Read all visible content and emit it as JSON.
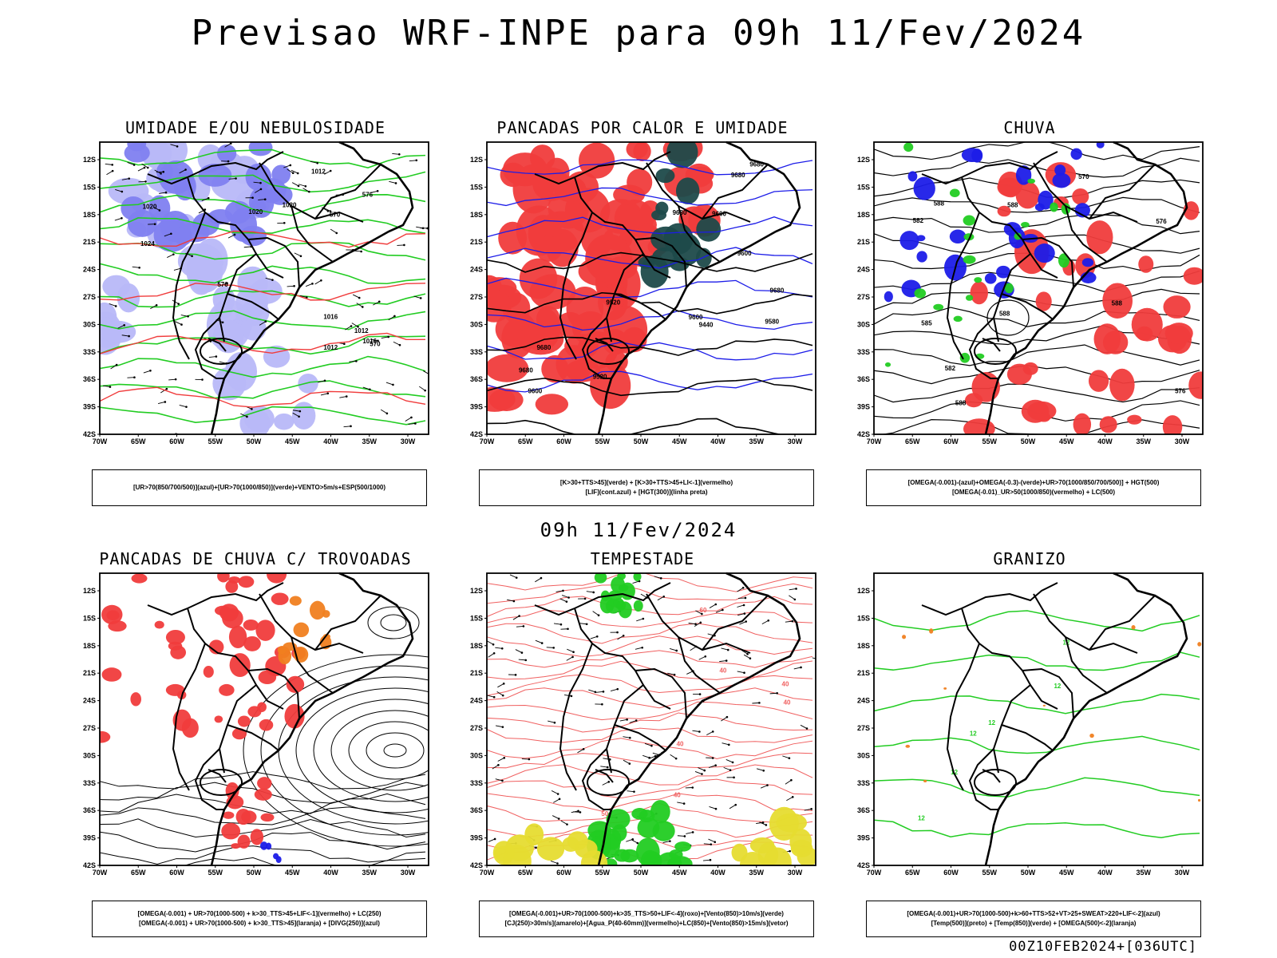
{
  "title": "Previsao WRF-INPE  para 09h 11/Fev/2024",
  "mid_date": "09h 11/Fev/2024",
  "footer": "00Z10FEB2024+[036UTC]",
  "axes": {
    "lat_labels": [
      "12S",
      "15S",
      "18S",
      "21S",
      "24S",
      "27S",
      "30S",
      "33S",
      "36S",
      "39S",
      "42S"
    ],
    "lon_labels": [
      "70W",
      "65W",
      "60W",
      "55W",
      "50W",
      "45W",
      "40W",
      "35W",
      "30W"
    ]
  },
  "colors": {
    "blue_fill": "#8080f0",
    "light_blue_fill": "#b8b8f8",
    "deep_blue": "#1c1ce8",
    "red_fill": "#f03c3c",
    "green_line": "#22cc22",
    "dark_teal": "#1e4a4a",
    "orange": "#f08020",
    "yellow": "#e6dc30",
    "salmon_line": "#f06060",
    "map_line": "#000000"
  },
  "panels": [
    {
      "id": "umidade",
      "title": "UMIDADE E/OU NEBULOSIDADE",
      "legend": [
        "[UR>70(850/700/500)](azul)+[UR>70(1000/850)](verde)+VENTO>5m/s+ESP(500/1000)"
      ],
      "contour_labels": [
        "1016",
        "1020",
        "1020",
        "1012",
        "1020",
        "1016",
        "1012",
        "1012",
        "1024",
        "570",
        "576",
        "570",
        "576"
      ]
    },
    {
      "id": "pancadas_calor",
      "title": "PANCADAS POR CALOR E UMIDADE",
      "legend": [
        "[K>30+TTS>45](verde) + [K>30+TTS>45+LI<-1](vermelho)",
        "[LIF](cont.azul) + [HGT(300)](linha preta)"
      ],
      "contour_labels": [
        "9680",
        "9680",
        "9600",
        "9680",
        "9600",
        "9680",
        "9680",
        "9600",
        "9680",
        "9600",
        "9520",
        "9440",
        "9520",
        "9580"
      ]
    },
    {
      "id": "chuva",
      "title": "CHUVA",
      "legend": [
        "[OMEGA(-0.001)-(azul)+OMEGA(-0.3)-(verde)+UR>70(1000/850/700/500)] + HGT(500)",
        "[OMEGA(-0.01)_UR>50(1000/850)(vermelho) + LC(500)"
      ],
      "contour_labels": [
        "588",
        "588",
        "588",
        "588",
        "588",
        "582",
        "576",
        "582",
        "585",
        "570",
        "576"
      ]
    },
    {
      "id": "trovoadas",
      "title": "PANCADAS DE CHUVA C/ TROVOADAS",
      "legend": [
        "[OMEGA(-0.001) + UR>70(1000-500) + k>30_TTS>45+LIF<-1](vermelho) + LC(250)",
        "[OMEGA(-0.001) + UR>70(1000-500) + k>30_TTS>45](laranja) + [DIVG(250)](azul)"
      ]
    },
    {
      "id": "tempestade",
      "title": "TEMPESTADE",
      "legend": [
        "[OMEGA(-0.001)+UR>70(1000-500)+k>35_TTS>50+LIF<-4](roxo)+[Vento(850)>10m/s](verde)",
        "[CJ(250)>30m/s](amarelo)+[Agua_P(40-60mm)](vermelho)+LC(850)+[Vento(850)>15m/s](vetor)"
      ],
      "contour_labels": [
        "40",
        "40",
        "40",
        "50",
        "60",
        "40",
        "40"
      ]
    },
    {
      "id": "granizo",
      "title": "GRANIZO",
      "legend": [
        "[OMEGA(-0.001)+UR>70(1000-500)+k>60+TTS>52+VT>25+SWEAT>220+LIF<-2](azul)",
        "[Temp(500)](preto) + [Temp(850)](verde) + [OMEGA(500)<-2](laranja)"
      ],
      "contour_labels": [
        "12",
        "12",
        "12",
        "12",
        "12",
        "12"
      ]
    }
  ]
}
